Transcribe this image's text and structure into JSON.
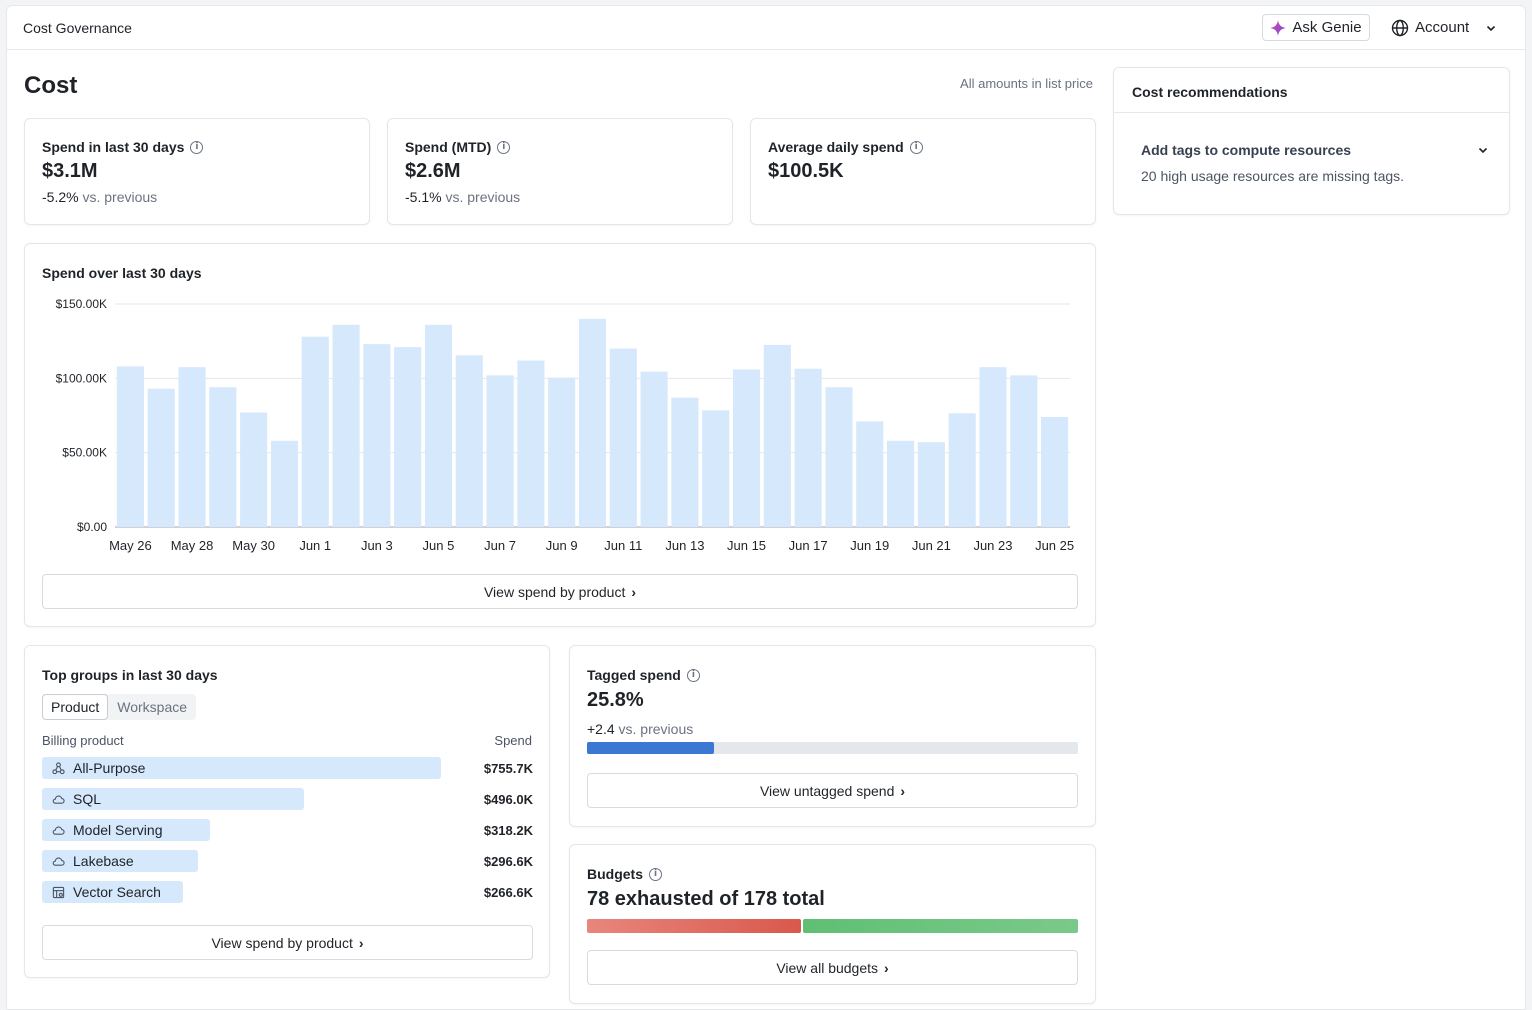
{
  "header": {
    "breadcrumb": "Cost Governance",
    "genie_label": "Ask Genie",
    "account_label": "Account"
  },
  "page": {
    "title": "Cost",
    "price_note": "All amounts in list price"
  },
  "stats": [
    {
      "title": "Spend in last 30 days",
      "value": "$3.1M",
      "delta": "-5.2%",
      "delta_suffix": "vs. previous"
    },
    {
      "title": "Spend (MTD)",
      "value": "$2.6M",
      "delta": "-5.1%",
      "delta_suffix": "vs. previous"
    },
    {
      "title": "Average daily spend",
      "value": "$100.5K"
    }
  ],
  "spend_chart": {
    "heading": "Spend over last 30 days",
    "button_label": "View spend by product"
  },
  "chart_data": {
    "type": "bar",
    "categories": [
      "May 26",
      "May 27",
      "May 28",
      "May 29",
      "May 30",
      "May 31",
      "Jun 1",
      "Jun 2",
      "Jun 3",
      "Jun 4",
      "Jun 5",
      "Jun 6",
      "Jun 7",
      "Jun 8",
      "Jun 9",
      "Jun 10",
      "Jun 11",
      "Jun 12",
      "Jun 13",
      "Jun 14",
      "Jun 15",
      "Jun 16",
      "Jun 17",
      "Jun 18",
      "Jun 19",
      "Jun 20",
      "Jun 21",
      "Jun 22",
      "Jun 23",
      "Jun 24",
      "Jun 25"
    ],
    "values": [
      108000,
      93000,
      107500,
      94000,
      77000,
      58000,
      128000,
      136000,
      123000,
      121000,
      136000,
      115500,
      102000,
      112000,
      100500,
      140000,
      120000,
      104500,
      87000,
      78500,
      106000,
      122500,
      106500,
      94000,
      71000,
      58000,
      57000,
      76500,
      107500,
      102000,
      74000
    ],
    "tick_labels": [
      "May 26",
      "May 28",
      "May 30",
      "Jun 1",
      "Jun 3",
      "Jun 5",
      "Jun 7",
      "Jun 9",
      "Jun 11",
      "Jun 13",
      "Jun 15",
      "Jun 17",
      "Jun 19",
      "Jun 21",
      "Jun 23",
      "Jun 25"
    ],
    "yticks": [
      {
        "value": 0,
        "label": "$0.00"
      },
      {
        "value": 50000,
        "label": "$50.00K"
      },
      {
        "value": 100000,
        "label": "$100.00K"
      },
      {
        "value": 150000,
        "label": "$150.00K"
      }
    ],
    "ylim": [
      0,
      150000
    ],
    "title": "Spend over last 30 days",
    "xlabel": "",
    "ylabel": "",
    "grid": true,
    "bar_color": "#d6e8fb"
  },
  "top_groups": {
    "heading": "Top groups in last 30 days",
    "tabs": [
      "Product",
      "Workspace"
    ],
    "active_tab": "Product",
    "col_label": "Billing product",
    "col_value": "Spend",
    "rows": [
      {
        "label": "All-Purpose",
        "value": "$755.7K",
        "icon": "cluster-icon",
        "share": 1.0
      },
      {
        "label": "SQL",
        "value": "$496.0K",
        "icon": "cloud-icon",
        "share": 0.656
      },
      {
        "label": "Model Serving",
        "value": "$318.2K",
        "icon": "cloud-icon",
        "share": 0.421
      },
      {
        "label": "Lakebase",
        "value": "$296.6K",
        "icon": "cloud-icon",
        "share": 0.392
      },
      {
        "label": "Vector Search",
        "value": "$266.6K",
        "icon": "vector-icon",
        "share": 0.353
      }
    ],
    "button_label": "View spend by product"
  },
  "tagged": {
    "heading": "Tagged spend",
    "value": "25.8%",
    "delta": "+2.4",
    "delta_suffix": "vs. previous",
    "fraction": 0.258,
    "button_label": "View untagged spend"
  },
  "budgets": {
    "heading": "Budgets",
    "summary": "78 exhausted of 178 total",
    "exhausted": 78,
    "total": 178,
    "button_label": "View all budgets",
    "colors": {
      "exhausted": "#d9584c",
      "ok": "#7bc98a"
    }
  },
  "recommendations": {
    "heading": "Cost recommendations",
    "items": [
      {
        "title": "Add tags to compute resources",
        "desc": "20 high usage resources are missing tags."
      }
    ]
  },
  "colors": {
    "accent": "#3a78d4",
    "bar": "#d6e8fb"
  }
}
